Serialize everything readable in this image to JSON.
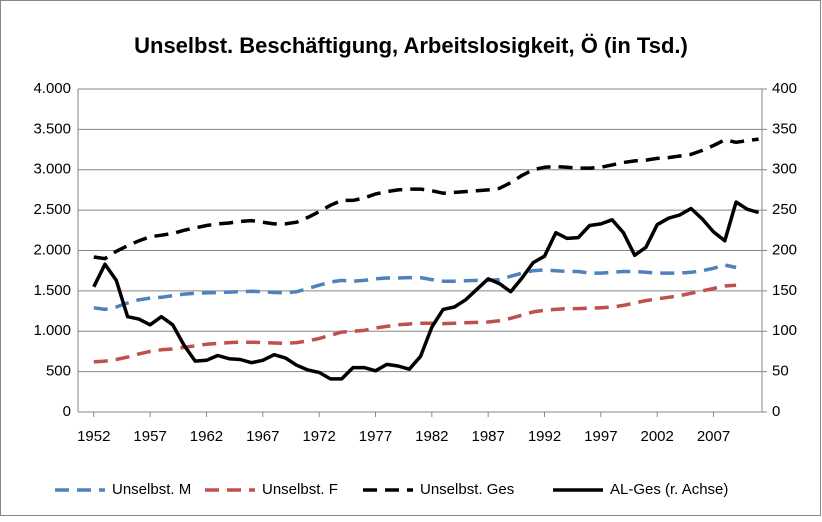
{
  "chart_data": {
    "type": "line",
    "title": "Unselbst. Beschäftigung, Arbeitslosigkeit, Ö (in Tsd.)",
    "x": [
      1952,
      1953,
      1954,
      1955,
      1956,
      1957,
      1958,
      1959,
      1960,
      1961,
      1962,
      1963,
      1964,
      1965,
      1966,
      1967,
      1968,
      1969,
      1970,
      1971,
      1972,
      1973,
      1974,
      1975,
      1976,
      1977,
      1978,
      1979,
      1980,
      1981,
      1982,
      1983,
      1984,
      1985,
      1986,
      1987,
      1988,
      1989,
      1990,
      1991,
      1992,
      1993,
      1994,
      1995,
      1996,
      1997,
      1998,
      1999,
      2000,
      2001,
      2002,
      2003,
      2004,
      2005,
      2006,
      2007,
      2008,
      2009,
      2010,
      2011
    ],
    "xlim": [
      1950.6,
      2011.3
    ],
    "xticks": [
      1952,
      1957,
      1962,
      1967,
      1972,
      1977,
      1982,
      1987,
      1992,
      1997,
      2002,
      2007
    ],
    "ylim": [
      0,
      4000
    ],
    "yticks": [
      0,
      500,
      {
        "value": 1000,
        "label": "1.000"
      },
      {
        "value": 1500,
        "label": "1.500"
      },
      {
        "value": 2000,
        "label": "2.000"
      },
      {
        "value": 2500,
        "label": "2.500"
      },
      {
        "value": 3000,
        "label": "3.000"
      },
      {
        "value": 3500,
        "label": "3.500"
      },
      {
        "value": 4000,
        "label": "4.000"
      }
    ],
    "y2lim": [
      0,
      400
    ],
    "y2ticks": [
      0,
      50,
      100,
      150,
      200,
      250,
      300,
      350,
      400
    ],
    "grid": true,
    "legend": "bottom",
    "series": [
      {
        "name": "Unselbst. M",
        "color": "#4f81bd",
        "dashed": true,
        "values": [
          1290,
          1270,
          1300,
          1350,
          1390,
          1410,
          1420,
          1440,
          1460,
          1470,
          1475,
          1480,
          1485,
          1490,
          1495,
          1490,
          1480,
          1475,
          1490,
          1530,
          1570,
          1610,
          1630,
          1620,
          1630,
          1650,
          1660,
          1660,
          1665,
          1665,
          1640,
          1620,
          1620,
          1625,
          1630,
          1630,
          1640,
          1680,
          1720,
          1750,
          1760,
          1750,
          1740,
          1740,
          1720,
          1720,
          1730,
          1740,
          1740,
          1730,
          1720,
          1720,
          1720,
          1730,
          1750,
          1780,
          1820,
          1790,
          null,
          null
        ]
      },
      {
        "name": "Unselbst. F",
        "color": "#c0504d",
        "dashed": true,
        "values": [
          620,
          630,
          650,
          680,
          720,
          750,
          770,
          780,
          800,
          820,
          840,
          850,
          860,
          865,
          865,
          860,
          855,
          850,
          860,
          880,
          910,
          950,
          990,
          1000,
          1010,
          1040,
          1060,
          1080,
          1090,
          1100,
          1100,
          1095,
          1100,
          1105,
          1110,
          1115,
          1130,
          1160,
          1200,
          1240,
          1260,
          1270,
          1280,
          1280,
          1285,
          1290,
          1300,
          1320,
          1350,
          1380,
          1400,
          1420,
          1440,
          1470,
          1500,
          1530,
          1560,
          1570,
          null,
          null
        ]
      },
      {
        "name": "Unselbst. Ges",
        "color": "#000000",
        "dashed": true,
        "values": [
          1920,
          1900,
          1990,
          2060,
          2120,
          2170,
          2190,
          2210,
          2250,
          2280,
          2310,
          2330,
          2340,
          2360,
          2370,
          2350,
          2330,
          2330,
          2350,
          2410,
          2480,
          2560,
          2620,
          2620,
          2650,
          2700,
          2730,
          2750,
          2760,
          2760,
          2740,
          2710,
          2720,
          2730,
          2740,
          2750,
          2770,
          2840,
          2930,
          3000,
          3030,
          3040,
          3030,
          3020,
          3020,
          3030,
          3060,
          3090,
          3110,
          3120,
          3140,
          3150,
          3170,
          3190,
          3240,
          3300,
          3370,
          3340,
          3360,
          3380
        ]
      },
      {
        "name": "AL-Ges (r. Achse)",
        "color": "#000000",
        "dashed": false,
        "axis": "y2",
        "values": [
          155,
          183,
          163,
          118,
          115,
          108,
          118,
          108,
          83,
          63,
          64,
          70,
          66,
          65,
          61,
          64,
          71,
          67,
          58,
          52,
          49,
          41,
          41,
          55,
          55,
          51,
          59,
          57,
          53,
          69,
          105,
          127,
          130,
          139,
          152,
          165,
          159,
          149,
          166,
          185,
          193,
          222,
          215,
          216,
          231,
          233,
          238,
          222,
          194,
          204,
          232,
          240,
          244,
          252,
          239,
          223,
          212,
          260,
          251,
          247
        ]
      }
    ]
  }
}
